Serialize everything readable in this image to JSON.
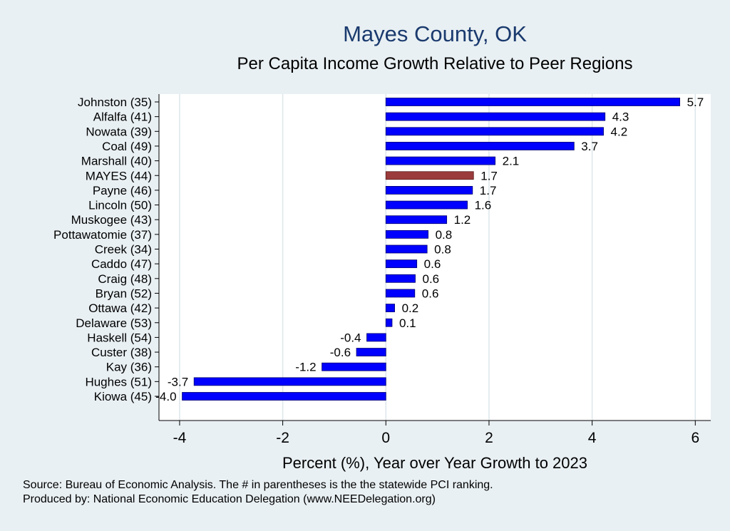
{
  "chart_data": {
    "type": "bar",
    "orientation": "horizontal",
    "title": "Mayes County, OK",
    "subtitle": "Per Capita Income Growth Relative to Peer Regions",
    "xlabel": "Percent (%), Year over Year Growth to 2023",
    "ylabel": "",
    "xlim": [
      -4.4,
      6.3
    ],
    "xticks": [
      -4,
      -2,
      0,
      2,
      4,
      6
    ],
    "xtick_labels": [
      "-4",
      "-2",
      "0",
      "2",
      "4",
      "6"
    ],
    "grid": true,
    "categories": [
      "Johnston (35)",
      "Alfalfa (41)",
      "Nowata (39)",
      "Coal (49)",
      "Marshall (40)",
      "MAYES (44)",
      "Payne (46)",
      "Lincoln (50)",
      "Muskogee (43)",
      "Pottawatomie (37)",
      "Creek (34)",
      "Caddo (47)",
      "Craig (48)",
      "Bryan (52)",
      "Ottawa (42)",
      "Delaware (53)",
      "Haskell (54)",
      "Custer (38)",
      "Kay (36)",
      "Hughes (51)",
      "Kiowa (45)"
    ],
    "values": [
      5.7,
      4.25,
      4.22,
      3.65,
      2.12,
      1.7,
      1.68,
      1.58,
      1.18,
      0.82,
      0.8,
      0.6,
      0.57,
      0.56,
      0.17,
      0.12,
      -0.37,
      -0.57,
      -1.24,
      -3.72,
      -3.95
    ],
    "value_labels": [
      "5.7",
      "4.3",
      "4.2",
      "3.7",
      "2.1",
      "1.7",
      "1.7",
      "1.6",
      "1.2",
      "0.8",
      "0.8",
      "0.6",
      "0.6",
      "0.6",
      "0.2",
      "0.1",
      "-0.4",
      "-0.6",
      "-1.2",
      "-3.7",
      "-4.0"
    ],
    "highlight_index": 5,
    "colors": {
      "bar": "#0000ff",
      "highlight": "#9b3b3b",
      "bar_edge": "#00006e",
      "title": "#1a3a6e",
      "grid": "#dde6ea"
    }
  },
  "footer": {
    "source": "Source: Bureau of Economic Analysis. The # in parentheses is the the statewide PCI ranking.",
    "produced_by": "Produced by: National Economic Education Delegation (www.NEEDelegation.org)"
  }
}
